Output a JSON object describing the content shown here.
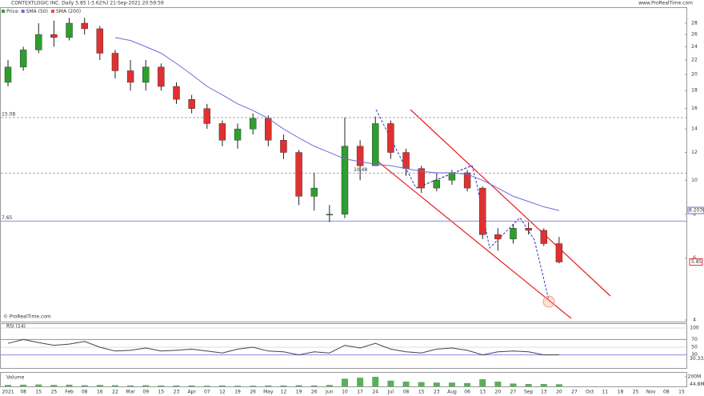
{
  "header": {
    "title": "CONTEXTLOGIC INC. Daily 5.85 (-3.62%) 21-Sep-2021 20:59:59",
    "source": "www.ProRealTime.com"
  },
  "chart_data": [
    {
      "type": "candlestick",
      "watermark": "© ProRealTime.com",
      "log": true,
      "categories": [
        "2021",
        "08",
        "15",
        "25",
        "Feb",
        "08",
        "16",
        "22",
        "Mar",
        "09",
        "15",
        "23",
        "Apr",
        "07",
        "12",
        "19",
        "26",
        "May",
        "12",
        "19",
        "26",
        "Jun",
        "10",
        "17",
        "24",
        "Jul",
        "08",
        "15",
        "23",
        "Aug",
        "06",
        "13",
        "20",
        "27",
        "Sep",
        "13",
        "20",
        "27",
        "Oct",
        "11",
        "18",
        "25",
        "Nov",
        "08",
        "15"
      ],
      "series": [
        {
          "name": "Price",
          "color": "#2e9e2e",
          "down_color": "#e03030",
          "open": [
            19,
            21,
            23.5,
            26,
            25.5,
            28,
            27,
            23,
            20.5,
            19,
            21,
            18.5,
            17,
            16,
            14.5,
            13,
            14,
            15,
            13,
            12,
            9,
            8,
            8,
            12.5,
            11,
            14.5,
            12,
            10.8,
            9.5,
            10,
            10.5,
            9.5,
            7,
            6.8,
            7.3,
            7.2,
            6.6,
            null,
            null,
            null,
            null,
            null,
            null,
            null,
            null
          ],
          "high": [
            22,
            24,
            28,
            28.5,
            29,
            29,
            27.5,
            23.5,
            22,
            22,
            21.5,
            19,
            17.5,
            16.5,
            14.8,
            14.5,
            15.5,
            15.3,
            13.5,
            12.2,
            10.5,
            8.5,
            15.1,
            13,
            15.2,
            14.8,
            12.3,
            11,
            10.5,
            10.7,
            10.7,
            9.6,
            7.3,
            7.5,
            7.6,
            7.3,
            6.9,
            null,
            null,
            null,
            null,
            null,
            null,
            null,
            null
          ],
          "low": [
            18.5,
            20.5,
            23,
            24,
            25,
            26,
            22,
            19.5,
            18,
            18,
            18,
            16.5,
            15.5,
            14,
            12.5,
            12.3,
            13.5,
            12.5,
            11.5,
            8.5,
            8.2,
            7.6,
            7.8,
            10,
            11,
            11.5,
            10.3,
            9.2,
            9.3,
            9.7,
            9.3,
            6.8,
            6.3,
            6.6,
            7,
            6.5,
            5.8,
            null,
            null,
            null,
            null,
            null,
            null,
            null,
            null
          ],
          "close": [
            21,
            23.5,
            26,
            25.5,
            28,
            27,
            23,
            20.5,
            19,
            21,
            18.5,
            17,
            16,
            14.5,
            13,
            14,
            15,
            13,
            12,
            9,
            9.5,
            8,
            12.5,
            11,
            14.5,
            12,
            10.8,
            9.5,
            10,
            10.5,
            9.5,
            7,
            6.8,
            7.3,
            7.2,
            6.6,
            5.85,
            null,
            null,
            null,
            null,
            null,
            null,
            null,
            null
          ]
        },
        {
          "name": "SMA (50)",
          "color": "#6b6bdc",
          "values": [
            null,
            null,
            null,
            null,
            null,
            null,
            null,
            25.5,
            25,
            24,
            23,
            21.5,
            20,
            18.5,
            17.5,
            16.5,
            15.8,
            15,
            14,
            13.2,
            12.5,
            12,
            11.5,
            11.3,
            11.1,
            11,
            10.8,
            10.6,
            10.5,
            10.5,
            10.4,
            10,
            9.5,
            9,
            8.7,
            8.4,
            8.2,
            null,
            null,
            null,
            null,
            null,
            null,
            null,
            null
          ]
        },
        {
          "name": "SMA (200)",
          "color": "#d9534f"
        }
      ],
      "ylim": [
        4,
        28
      ],
      "yticks": [
        4,
        6,
        8,
        10,
        12,
        14,
        16,
        18,
        20,
        22,
        24,
        26,
        28
      ],
      "levels": [
        15.08,
        10.48,
        7.65
      ],
      "last_price": 5.85,
      "sma_last": {
        "value": 8.203,
        "label": "8.2030"
      }
    },
    {
      "type": "line",
      "title": "RSI (14)",
      "color": "#444",
      "values": [
        60,
        70,
        62,
        55,
        58,
        65,
        50,
        40,
        42,
        48,
        40,
        42,
        45,
        40,
        35,
        45,
        50,
        40,
        38,
        30,
        38,
        35,
        55,
        48,
        60,
        45,
        38,
        35,
        45,
        48,
        42,
        30,
        38,
        40,
        38,
        30,
        30.333,
        null,
        null,
        null,
        null,
        null,
        null,
        null,
        null
      ],
      "ylim": [
        0,
        100
      ],
      "yticks": [
        30,
        50,
        70,
        100
      ],
      "last": 30.333
    },
    {
      "type": "bar",
      "title": "Volume",
      "color": "#2e9e2e",
      "values": [
        30,
        35,
        40,
        30,
        35,
        25,
        30,
        25,
        20,
        25,
        20,
        20,
        20,
        15,
        20,
        15,
        15,
        20,
        20,
        25,
        20,
        30,
        160,
        180,
        200,
        120,
        100,
        90,
        80,
        80,
        70,
        150,
        100,
        60,
        50,
        50,
        44.8,
        null,
        null,
        null,
        null,
        null,
        null,
        null,
        null
      ],
      "ylim": [
        0,
        250
      ],
      "yticks": [
        {
          "value": 200,
          "label": "200M"
        }
      ],
      "last": {
        "value": 44.8,
        "label": "44.8M"
      }
    }
  ]
}
